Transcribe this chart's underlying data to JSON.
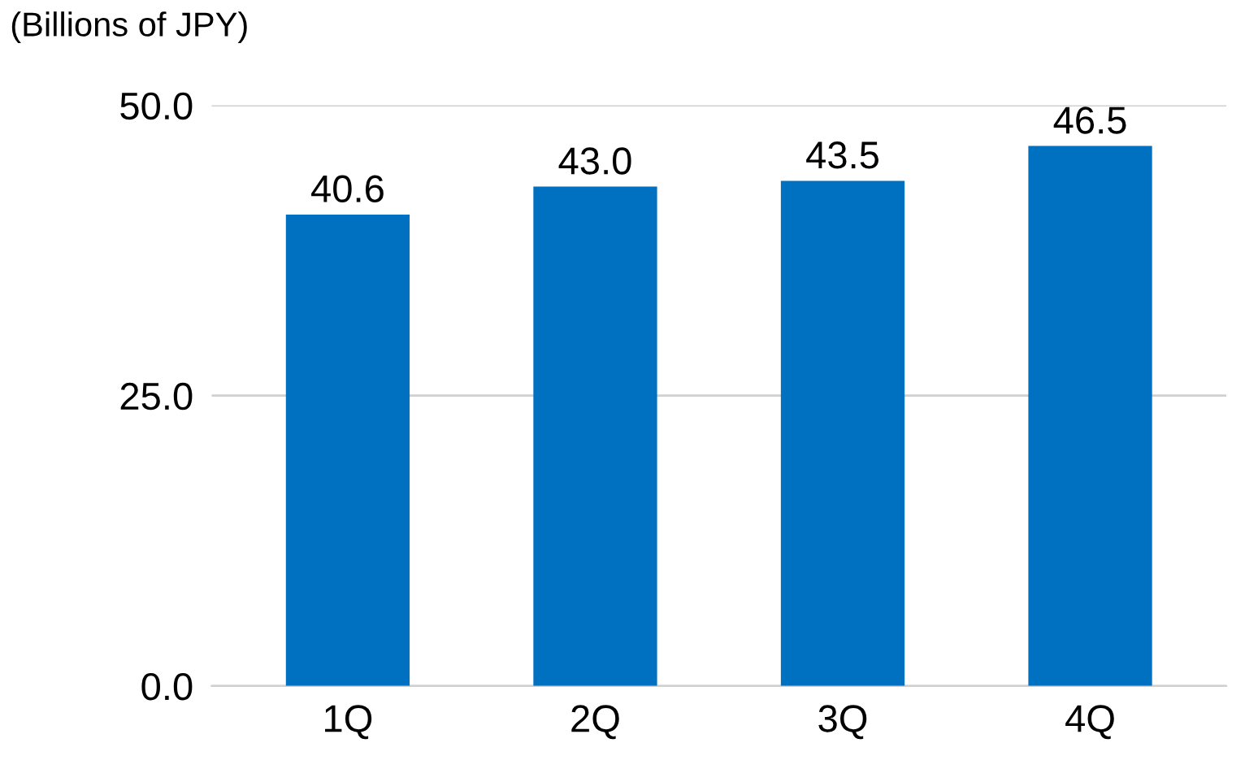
{
  "chart_data": {
    "type": "bar",
    "ylabel": "(Billions of JPY)",
    "categories": [
      "1Q",
      "2Q",
      "3Q",
      "4Q"
    ],
    "values": [
      40.6,
      43.0,
      43.5,
      46.5
    ],
    "color": "#0070c0",
    "ylim": [
      0,
      50
    ],
    "yticks": [
      {
        "value": 0,
        "label": "0.0"
      },
      {
        "value": 25,
        "label": "25.0"
      },
      {
        "value": 50,
        "label": "50.0"
      }
    ],
    "value_labels": [
      "40.6",
      "43.0",
      "43.5",
      "46.5"
    ],
    "grid": "y"
  }
}
